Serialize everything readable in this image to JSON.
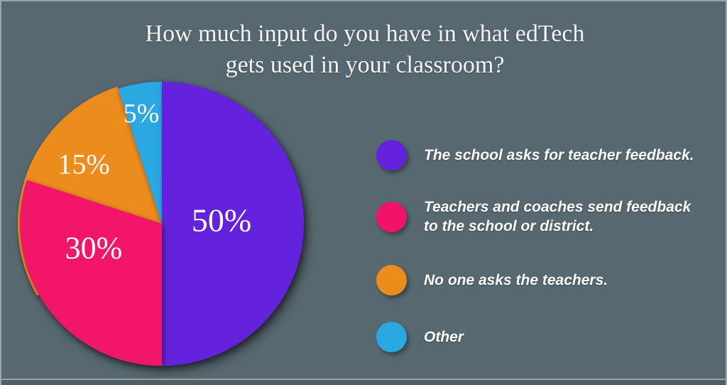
{
  "title": {
    "line1": "How much input do you have in what edTech",
    "line2": "gets used in your classroom?"
  },
  "chart_data": {
    "type": "pie",
    "title": "How much input do you have in what edTech gets used in your classroom?",
    "direction": "clockwise",
    "start_angle_deg": 0,
    "legend_position": "right",
    "slices": [
      {
        "label": "The school asks for teacher feedback.",
        "value": 50,
        "display": "50%",
        "color": "#6522DC"
      },
      {
        "label": "Teachers and coaches send feedback to the school or district.",
        "value": 30,
        "display": "30%",
        "color": "#F11368"
      },
      {
        "label": "No one asks the teachers.",
        "value": 15,
        "display": "15%",
        "color": "#EC8C1B"
      },
      {
        "label": "Other",
        "value": 5,
        "display": "5%",
        "color": "#29A8E2"
      }
    ]
  },
  "colors": {
    "background": "#576870",
    "frame_line": "#97A4AB",
    "text": "#F2F4F4"
  }
}
